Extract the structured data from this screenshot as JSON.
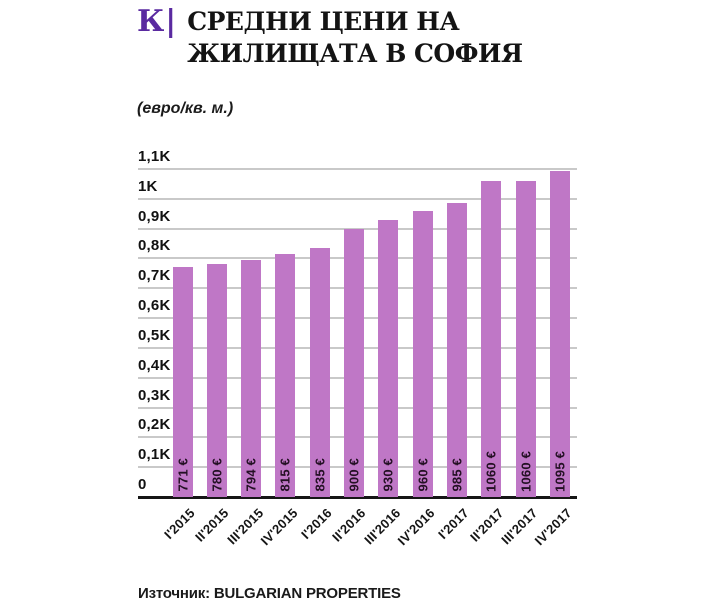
{
  "header": {
    "logo": "К|",
    "title_line1": "СРЕДНИ ЦЕНИ НА",
    "title_line2": "ЖИЛИЩАТА В СОФИЯ",
    "subtitle": "(евро/кв. м.)"
  },
  "footer": {
    "source": "Източник: BULGARIAN PROPERTIES"
  },
  "colors": {
    "bar": "#bf77c6",
    "logo_purple": "#5a2aa0",
    "gridline": "#c9c9c9",
    "axis": "#161616",
    "text": "#1a1a1a"
  },
  "chart_data": {
    "type": "bar",
    "title": "СРЕДНИ ЦЕНИ НА ЖИЛИЩАТА В СОФИЯ",
    "subtitle": "(евро/кв. м.)",
    "xlabel": "",
    "ylabel": "евро/кв. м.",
    "categories": [
      "I'2015",
      "II'2015",
      "III'2015",
      "IV'2015",
      "I'2016",
      "II'2016",
      "III'2016",
      "IV'2016",
      "I'2017",
      "II'2017",
      "III'2017",
      "IV'2017"
    ],
    "values": [
      771,
      780,
      794,
      815,
      835,
      900,
      930,
      960,
      985,
      1060,
      1060,
      1095
    ],
    "value_labels": [
      "771 €",
      "780 €",
      "794 €",
      "815 €",
      "835 €",
      "900 €",
      "930 €",
      "960 €",
      "985 €",
      "1060 €",
      "1060 €",
      "1095 €"
    ],
    "ylim": [
      0,
      1100
    ],
    "ytick_values": [
      0,
      100,
      200,
      300,
      400,
      500,
      600,
      700,
      800,
      900,
      1000,
      1100
    ],
    "ytick_labels": [
      "0",
      "0,1K",
      "0,2K",
      "0,3K",
      "0,4K",
      "0,5K",
      "0,6K",
      "0,7K",
      "0,8K",
      "0,9K",
      "1K",
      "1,1K"
    ],
    "grid": "horizontal",
    "legend": "none",
    "source": "Източник: BULGARIAN PROPERTIES"
  }
}
